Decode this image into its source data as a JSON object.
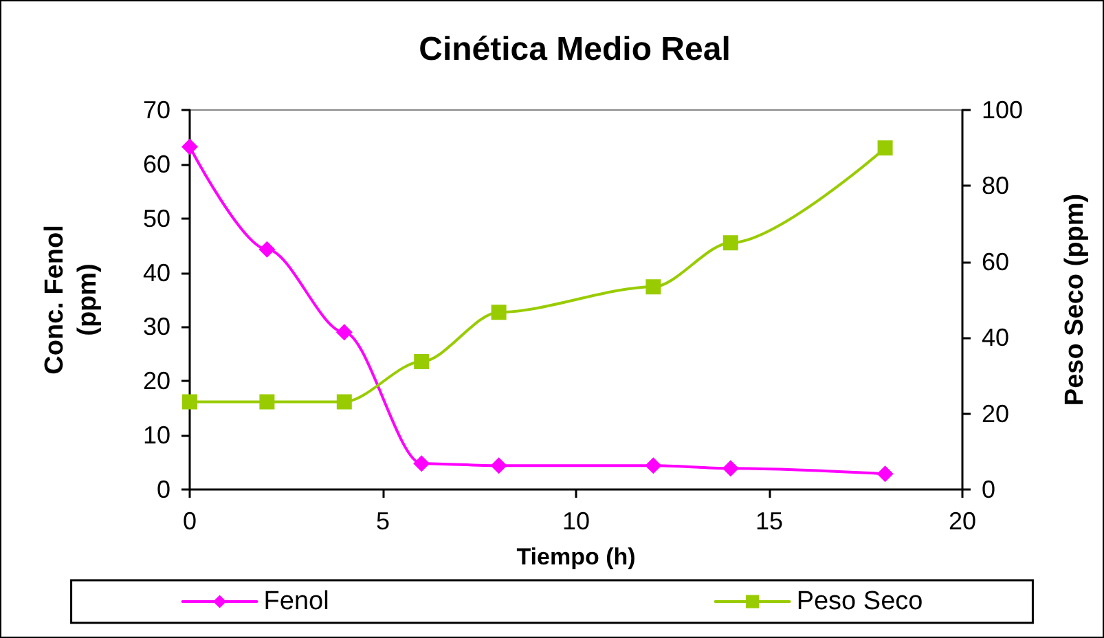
{
  "chart_data": {
    "type": "line",
    "title": "Cinética Medio Real",
    "xlabel": "Tiempo (h)",
    "ylabel": "Conc. Fenol\n(ppm)",
    "y2label": "Peso Seco (ppm)",
    "x": [
      0,
      2,
      4,
      6,
      8,
      12,
      14,
      18
    ],
    "series": [
      {
        "name": "Fenol",
        "color": "#ff00ff",
        "marker": "diamond",
        "values": [
          63.2,
          44.3,
          29,
          4.8,
          4.4,
          4.4,
          3.9,
          2.9
        ]
      },
      {
        "name": "Peso Seco",
        "color": "#99cc00",
        "marker": "square",
        "axis": "y2",
        "values": [
          23.1,
          23.1,
          23.1,
          33.7,
          46.7,
          53.4,
          65,
          90
        ]
      }
    ],
    "xlim": [
      0,
      20
    ],
    "xticks": [
      0,
      5,
      10,
      15,
      20
    ],
    "ylim": [
      0,
      70
    ],
    "yticks": [
      0,
      10,
      20,
      30,
      40,
      50,
      60,
      70
    ],
    "y2lim": [
      0,
      100
    ],
    "y2ticks": [
      0,
      20,
      40,
      60,
      80,
      100
    ],
    "grid": false,
    "legend": "bottom",
    "line_style": "solid"
  }
}
